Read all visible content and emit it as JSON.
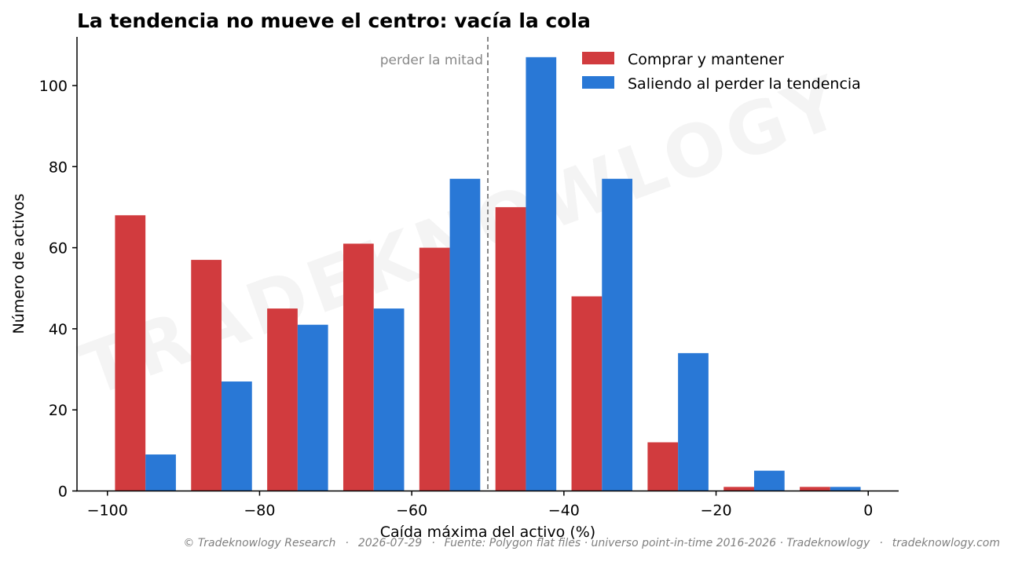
{
  "watermark": "TRADEKNOWLOGY",
  "footer": {
    "copyright": "© Tradeknowlogy Research",
    "date": "2026-07-29",
    "source": "Fuente: Polygon flat files · universo point-in-time 2016-2026 · Tradeknowlogy",
    "site": "tradeknowlogy.com",
    "separator": "·"
  },
  "chart_data": {
    "type": "bar",
    "title": "La tendencia no mueve el centro: vacía la cola",
    "xlabel": "Caída máxima del activo (%)",
    "ylabel": "Número de activos",
    "xlim": [
      -104,
      4
    ],
    "ylim": [
      0,
      112
    ],
    "x_ticks": [
      -100,
      -80,
      -60,
      -40,
      -20,
      0
    ],
    "y_ticks": [
      0,
      20,
      40,
      60,
      80,
      100
    ],
    "x_tick_labels": [
      "−100",
      "−80",
      "−60",
      "−40",
      "−20",
      "0"
    ],
    "y_tick_labels": [
      "0",
      "20",
      "40",
      "60",
      "80",
      "100"
    ],
    "bin_edges": [
      -100,
      -90,
      -80,
      -70,
      -60,
      -50,
      -40,
      -30,
      -20,
      -10,
      0
    ],
    "series": [
      {
        "name": "Comprar y mantener",
        "color": "#d13b3e",
        "values": [
          68,
          57,
          45,
          61,
          60,
          70,
          48,
          12,
          1,
          1
        ]
      },
      {
        "name": "Saliendo al perder la tendencia",
        "color": "#2978d6",
        "values": [
          9,
          27,
          41,
          45,
          77,
          107,
          77,
          34,
          5,
          1
        ]
      }
    ],
    "reference_line": {
      "x": -50,
      "label": "perder la mitad",
      "color": "#888888",
      "style": "dashed"
    },
    "legend_position": "top-right",
    "grid": false
  }
}
